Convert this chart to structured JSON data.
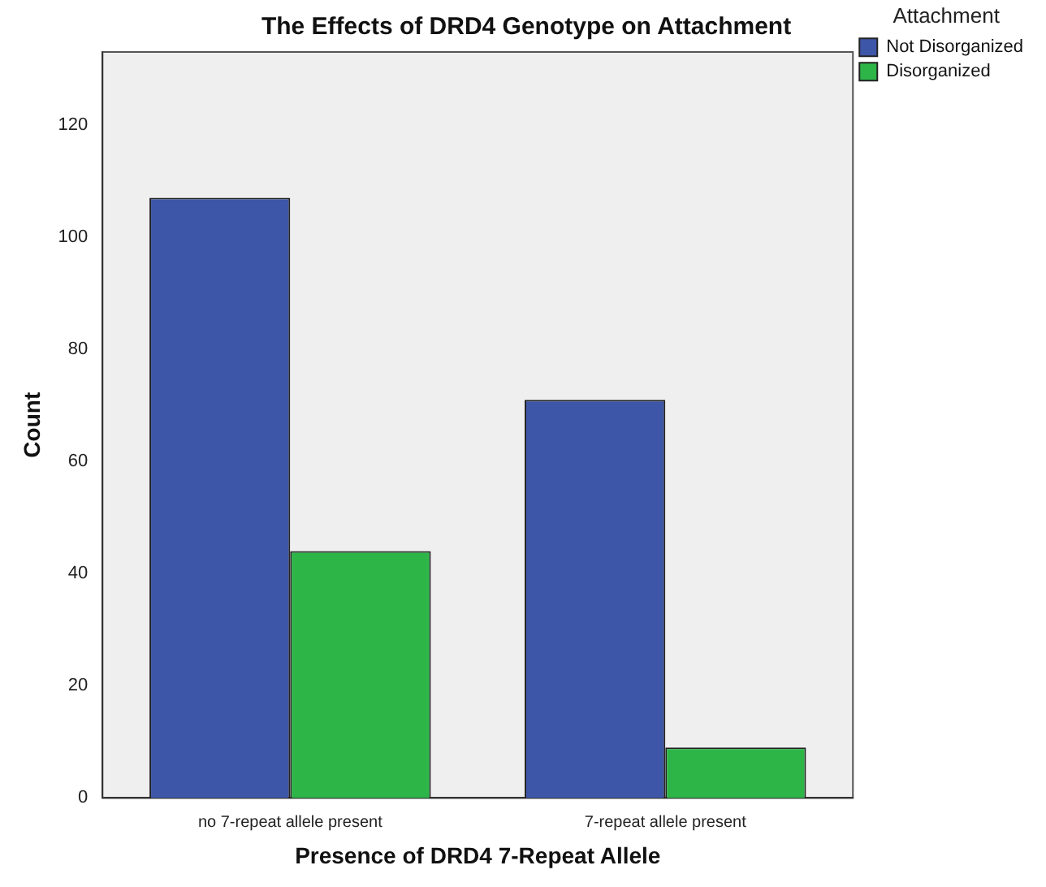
{
  "chart_data": {
    "type": "bar",
    "title": "The Effects of DRD4 Genotype on Attachment",
    "xlabel": "Presence of DRD4 7-Repeat Allele",
    "ylabel": "Count",
    "legend_title": "Attachment",
    "categories": [
      "no 7-repeat allele present",
      "7-repeat allele present"
    ],
    "series": [
      {
        "name": "Not Disorganized",
        "color": "#3d56a8",
        "values": [
          107,
          71
        ]
      },
      {
        "name": "Disorganized",
        "color": "#2db548",
        "values": [
          44,
          9
        ]
      }
    ],
    "ylim": [
      0,
      133
    ],
    "yticks": [
      0,
      20,
      40,
      60,
      80,
      100,
      120
    ],
    "grid": false,
    "legend": "top right"
  }
}
